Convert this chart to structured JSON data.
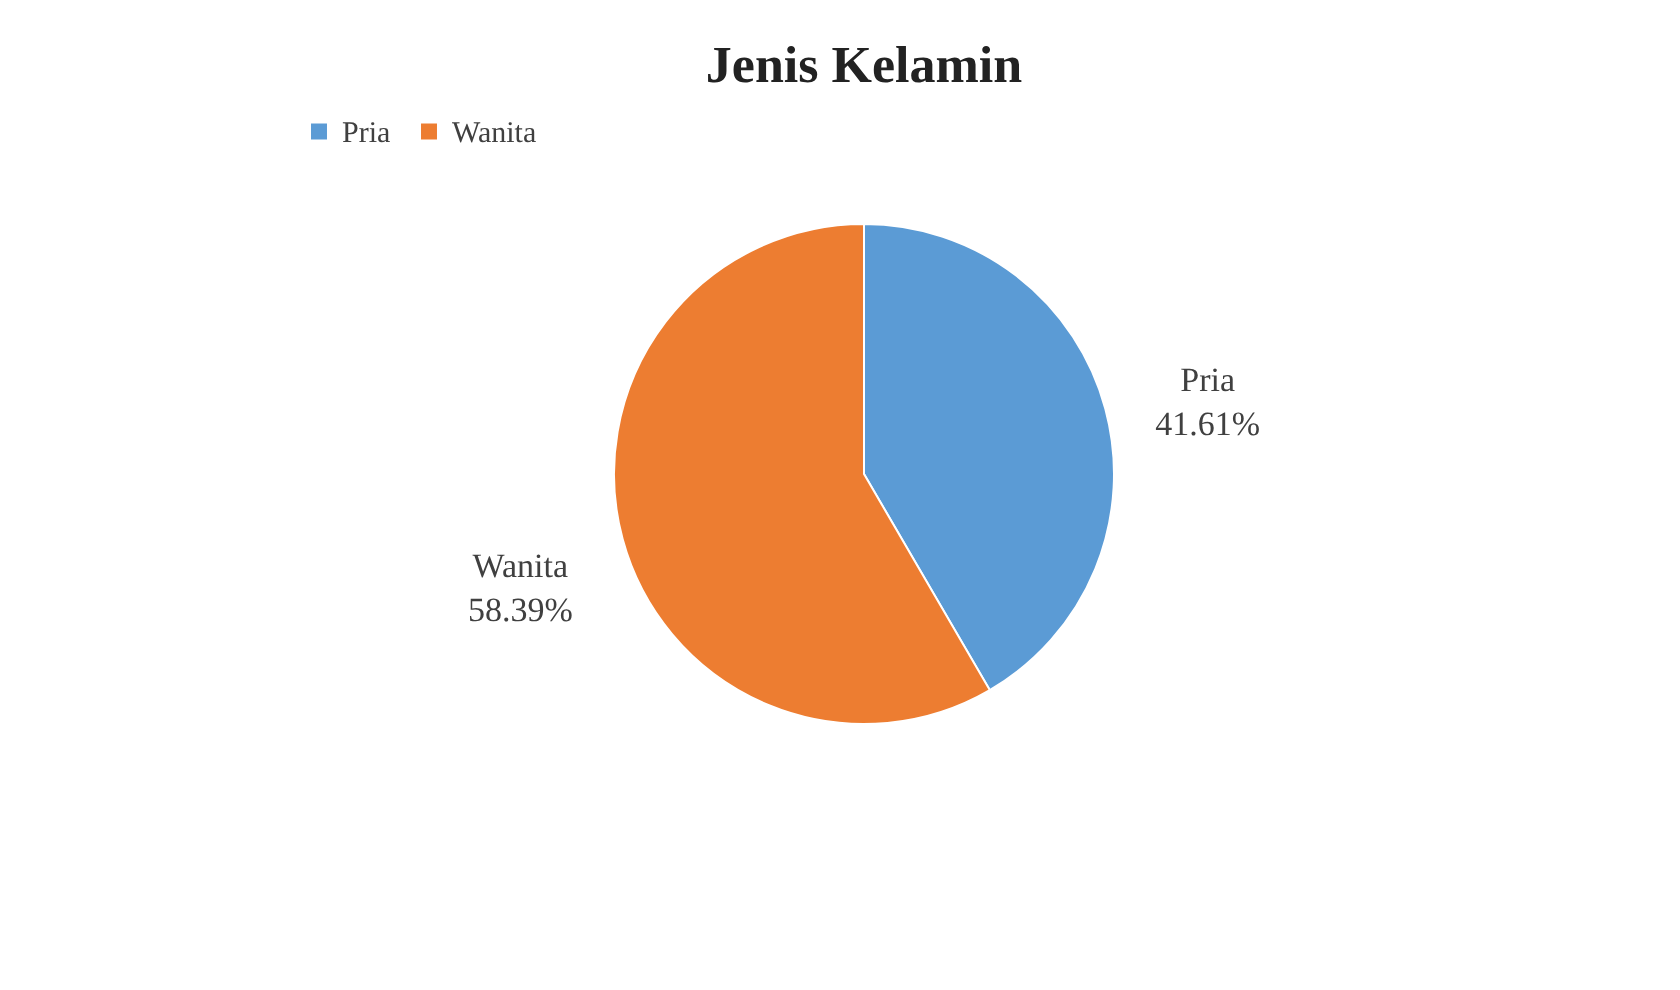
{
  "chart_data": {
    "type": "pie",
    "title": "Jenis Kelamin",
    "categories": [
      "Pria",
      "Wanita"
    ],
    "values": [
      41.61,
      58.39
    ],
    "colors": [
      "#5b9bd5",
      "#ed7d31"
    ],
    "value_labels": [
      "41.61%",
      "58.39%"
    ],
    "legend": "top"
  }
}
